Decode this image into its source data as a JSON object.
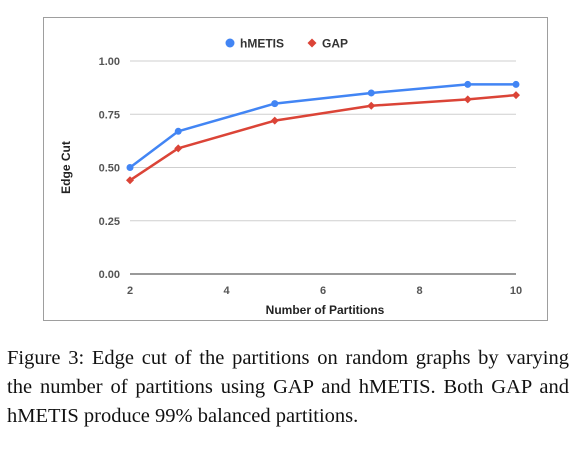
{
  "chart_data": {
    "type": "line",
    "title": "",
    "xlabel": "Number of Partitions",
    "ylabel": "Edge Cut",
    "xlim": [
      2,
      10
    ],
    "ylim": [
      0,
      1
    ],
    "xticks": [
      "2",
      "4",
      "6",
      "8",
      "10"
    ],
    "yticks": [
      "0.00",
      "0.25",
      "0.50",
      "0.75",
      "1.00"
    ],
    "grid": "horizontal",
    "legend": "top-center",
    "series": [
      {
        "name": "hMETIS",
        "color": "#4285f4",
        "marker": "circle",
        "x": [
          2,
          3,
          5,
          7,
          9,
          10
        ],
        "y": [
          0.5,
          0.67,
          0.8,
          0.85,
          0.89,
          0.89
        ]
      },
      {
        "name": "GAP",
        "color": "#db4437",
        "marker": "diamond",
        "x": [
          2,
          3,
          5,
          7,
          9,
          10
        ],
        "y": [
          0.44,
          0.59,
          0.72,
          0.79,
          0.82,
          0.84
        ]
      }
    ]
  },
  "caption": {
    "text": "Figure 3: Edge cut of the partitions on random graphs by varying the number of partitions using GAP and hMETIS. Both GAP and hMETIS produce 99% balanced partitions."
  }
}
